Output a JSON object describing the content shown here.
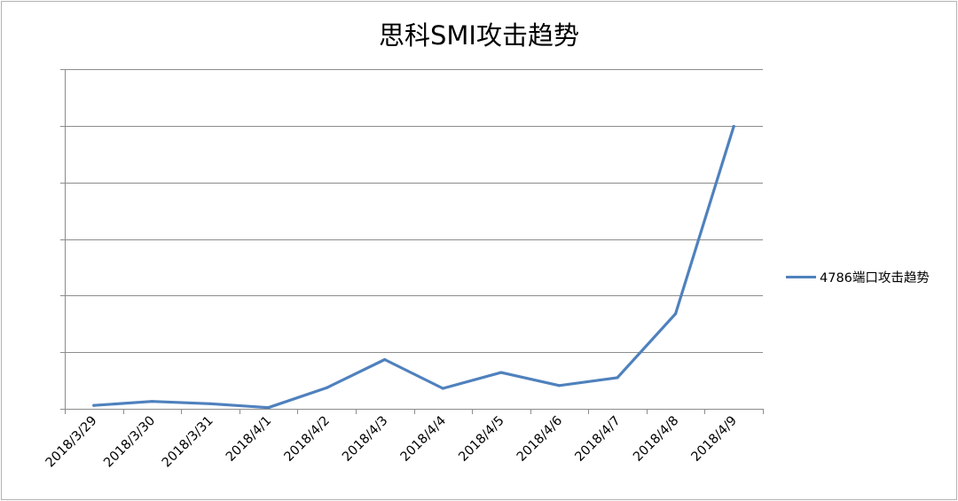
{
  "chart_data": {
    "type": "line",
    "title": "思科SMI攻击趋势",
    "xlabel": "",
    "ylabel": "",
    "categories": [
      "2018/3/29",
      "2018/3/30",
      "2018/3/31",
      "2018/4/1",
      "2018/4/2",
      "2018/4/3",
      "2018/4/4",
      "2018/4/5",
      "2018/4/6",
      "2018/4/7",
      "2018/4/8",
      "2018/4/9"
    ],
    "series": [
      {
        "name": "4786端口攻击趋势",
        "color": "#4f81bd",
        "values": [
          0.06,
          0.13,
          0.09,
          0.02,
          0.37,
          0.87,
          0.36,
          0.64,
          0.41,
          0.55,
          1.68,
          4.99
        ]
      }
    ],
    "ylim": [
      0,
      6
    ],
    "y_gridlines": [
      0,
      1,
      2,
      3,
      4,
      5,
      6
    ],
    "y_tick_labels": "none",
    "grid": true,
    "legend_position": "right"
  }
}
